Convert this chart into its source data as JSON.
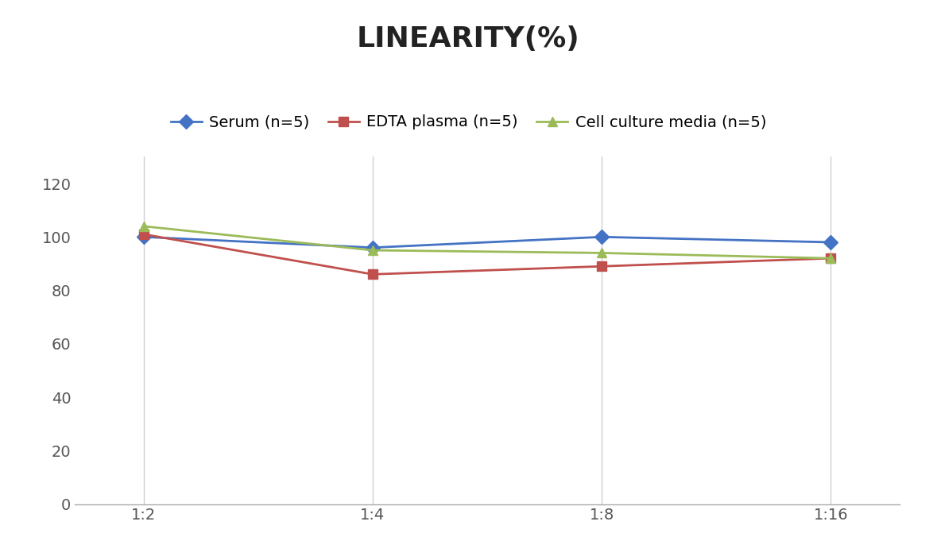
{
  "title": "LINEARITY(%)",
  "x_labels": [
    "1:2",
    "1:4",
    "1:8",
    "1:16"
  ],
  "series": [
    {
      "label": "Serum (n=5)",
      "values": [
        100,
        96,
        100,
        98
      ],
      "color": "#4472C4",
      "marker": "D"
    },
    {
      "label": "EDTA plasma (n=5)",
      "values": [
        101,
        86,
        89,
        92
      ],
      "color": "#C0504D",
      "marker": "s"
    },
    {
      "label": "Cell culture media (n=5)",
      "values": [
        104,
        95,
        94,
        92
      ],
      "color": "#9BBB59",
      "marker": "^"
    }
  ],
  "ylim": [
    0,
    130
  ],
  "yticks": [
    0,
    20,
    40,
    60,
    80,
    100,
    120
  ],
  "title_fontsize": 26,
  "legend_fontsize": 14,
  "tick_fontsize": 14,
  "background_color": "#ffffff",
  "grid_color": "#d0d0d0"
}
